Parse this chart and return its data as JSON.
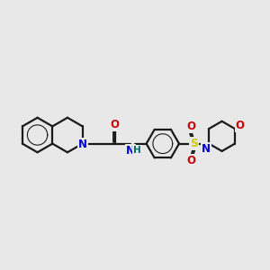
{
  "bg_color": "#e8e8e8",
  "bond_color": "#1a1a1a",
  "bond_width": 1.6,
  "n_color": "#0000cc",
  "o_color": "#cc0000",
  "s_color": "#cccc00",
  "nh_color": "#006666",
  "figsize": [
    3.0,
    3.0
  ],
  "dpi": 100,
  "xlim": [
    0,
    11
  ],
  "ylim": [
    0,
    11
  ]
}
